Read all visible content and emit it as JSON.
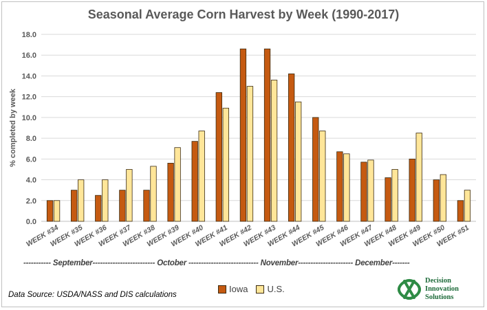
{
  "chart_data": {
    "type": "bar",
    "title": "Seasonal Average Corn Harvest by Week (1990-2017)",
    "ylabel": "% completed by week",
    "xlabel": "",
    "ylim": [
      0,
      18
    ],
    "yticks": [
      "0.0",
      "2.0",
      "4.0",
      "6.0",
      "8.0",
      "10.0",
      "12.0",
      "14.0",
      "16.0",
      "18.0"
    ],
    "grid": true,
    "categories": [
      "WEEK #34",
      "WEEK #35",
      "WEEK #36",
      "WEEK #37",
      "WEEK #38",
      "WEEK #39",
      "WEEK #40",
      "WEEK #41",
      "WEEK #42",
      "WEEK #43",
      "WEEK #44",
      "WEEK #45",
      "WEEK #46",
      "WEEK #47",
      "WEEK #48",
      "WEEK #49",
      "WEEK #50",
      "WEEK #51"
    ],
    "series": [
      {
        "name": "Iowa",
        "color": "#c55a11",
        "values": [
          2.0,
          3.0,
          2.5,
          3.0,
          3.0,
          5.6,
          7.7,
          12.4,
          16.6,
          16.6,
          14.2,
          10.0,
          6.7,
          5.7,
          4.2,
          6.0,
          4.0,
          2.0
        ]
      },
      {
        "name": "U.S.",
        "color": "#ffe699",
        "values": [
          2.0,
          4.0,
          4.0,
          5.0,
          5.3,
          7.1,
          8.7,
          10.9,
          13.0,
          13.6,
          11.5,
          8.7,
          6.5,
          5.9,
          5.0,
          8.5,
          4.5,
          3.0
        ]
      }
    ],
    "legend_position": "bottom",
    "month_labels": "----------- September------------------------- October ---------------------------- November---------------------- December-------"
  },
  "source": "Data Source: USDA/NASS and DIS calculations",
  "logo": {
    "line1": "Decision",
    "line2": "Innovation",
    "line3": "Solutions",
    "color": "#1e6b3a"
  }
}
